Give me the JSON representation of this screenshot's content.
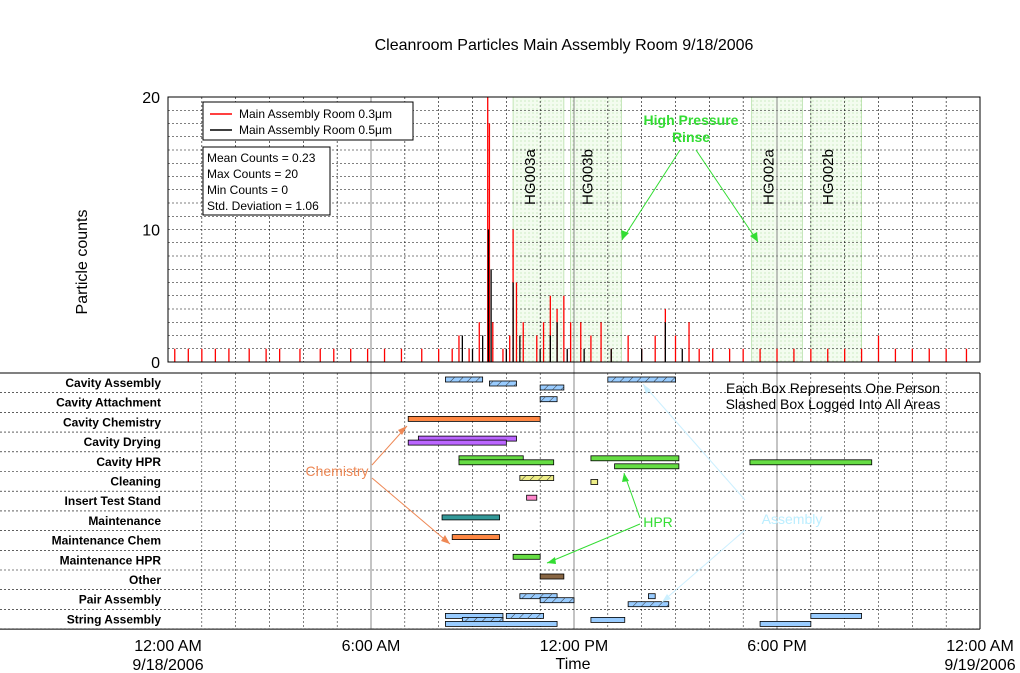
{
  "chart_data": {
    "title": "Cleanroom Particles Main Assembly Room 9/18/2006",
    "type": "line",
    "x_axis": {
      "label": "Time",
      "range_hours": [
        0,
        24
      ],
      "ticks": [
        {
          "hour": 0,
          "time": "12:00 AM",
          "date": "9/18/2006"
        },
        {
          "hour": 6,
          "time": "6:00 AM",
          "date": ""
        },
        {
          "hour": 12,
          "time": "12:00 PM",
          "date": ""
        },
        {
          "hour": 18,
          "time": "6:00 PM",
          "date": ""
        },
        {
          "hour": 24,
          "time": "12:00 AM",
          "date": "9/19/2006"
        }
      ]
    },
    "y_axis": {
      "label": "Particle counts",
      "ylim": [
        0,
        20
      ],
      "ticks": [
        "0",
        "10",
        "20"
      ]
    },
    "legend": {
      "placement": "top-left",
      "entries": [
        {
          "name": "Main Assembly Room 0.3μm",
          "color": "#ff0000"
        },
        {
          "name": "Main Assembly Room 0.5μm",
          "color": "#000000"
        }
      ]
    },
    "stats": [
      "Mean Counts = 0.23",
      "Max Counts = 20",
      "Min Counts = 0",
      "Std. Deviation = 1.06"
    ],
    "series": [
      {
        "name": "Main Assembly Room 0.3μm",
        "color": "#ff0000",
        "points": [
          [
            0.2,
            1
          ],
          [
            0.6,
            1
          ],
          [
            1.0,
            1
          ],
          [
            1.4,
            1
          ],
          [
            1.8,
            1
          ],
          [
            2.4,
            1
          ],
          [
            2.9,
            1
          ],
          [
            3.3,
            1
          ],
          [
            3.9,
            1
          ],
          [
            4.5,
            1
          ],
          [
            4.9,
            1
          ],
          [
            5.4,
            1
          ],
          [
            5.9,
            1
          ],
          [
            6.4,
            1
          ],
          [
            6.9,
            1
          ],
          [
            7.5,
            1
          ],
          [
            8.0,
            1
          ],
          [
            8.4,
            1
          ],
          [
            8.6,
            2
          ],
          [
            8.9,
            1
          ],
          [
            9.2,
            3
          ],
          [
            9.45,
            20
          ],
          [
            9.5,
            18
          ],
          [
            9.6,
            3
          ],
          [
            9.9,
            1
          ],
          [
            10.1,
            2
          ],
          [
            10.2,
            10
          ],
          [
            10.3,
            6
          ],
          [
            10.5,
            3
          ],
          [
            10.9,
            2
          ],
          [
            11.1,
            3
          ],
          [
            11.3,
            5
          ],
          [
            11.5,
            4
          ],
          [
            11.7,
            5
          ],
          [
            11.9,
            3
          ],
          [
            12.2,
            3
          ],
          [
            12.5,
            2
          ],
          [
            12.8,
            3
          ],
          [
            13.1,
            1
          ],
          [
            13.6,
            2
          ],
          [
            14.0,
            1
          ],
          [
            14.4,
            2
          ],
          [
            14.7,
            4
          ],
          [
            15.0,
            2
          ],
          [
            15.4,
            3
          ],
          [
            15.7,
            1
          ],
          [
            16.1,
            1
          ],
          [
            16.6,
            1
          ],
          [
            17.0,
            1
          ],
          [
            17.5,
            1
          ],
          [
            18.0,
            1
          ],
          [
            18.5,
            1
          ],
          [
            19.0,
            1
          ],
          [
            19.5,
            1
          ],
          [
            20.0,
            1
          ],
          [
            20.5,
            1
          ],
          [
            21.0,
            2
          ],
          [
            21.5,
            1
          ],
          [
            22.0,
            1
          ],
          [
            22.5,
            1
          ],
          [
            23.0,
            1
          ],
          [
            23.6,
            1
          ]
        ]
      },
      {
        "name": "Main Assembly Room 0.5μm",
        "color": "#000000",
        "points": [
          [
            8.7,
            2
          ],
          [
            9.0,
            1
          ],
          [
            9.3,
            2
          ],
          [
            9.47,
            10
          ],
          [
            9.55,
            7
          ],
          [
            10.0,
            1
          ],
          [
            10.2,
            6
          ],
          [
            10.4,
            2
          ],
          [
            11.0,
            1
          ],
          [
            11.3,
            2
          ],
          [
            11.5,
            3
          ],
          [
            11.8,
            1
          ],
          [
            12.3,
            1
          ],
          [
            13.1,
            1
          ],
          [
            14.0,
            1
          ],
          [
            14.7,
            3
          ],
          [
            15.2,
            1
          ]
        ]
      }
    ],
    "shaded_regions": [
      {
        "label": "HG003a",
        "start": 10.2,
        "end": 11.7
      },
      {
        "label": "HG003b",
        "start": 11.9,
        "end": 13.4
      },
      {
        "label": "HG002a",
        "start": 17.25,
        "end": 18.75
      },
      {
        "label": "HG002b",
        "start": 19.0,
        "end": 20.5
      }
    ],
    "gantt": {
      "categories": [
        "Cavity Assembly",
        "Cavity Attachment",
        "Cavity Chemistry",
        "Cavity Drying",
        "Cavity HPR",
        "Cleaning",
        "Insert Test Stand",
        "Maintenance",
        "Maintenance Chem",
        "Maintenance HPR",
        "Other",
        "Pair Assembly",
        "String Assembly"
      ],
      "boxes": [
        {
          "row": 0,
          "start": 8.2,
          "end": 9.3,
          "color": "#99ccff",
          "hatch": true
        },
        {
          "row": 0,
          "start": 9.5,
          "end": 10.3,
          "color": "#99ccff",
          "hatch": true
        },
        {
          "row": 0,
          "start": 11.0,
          "end": 11.7,
          "color": "#99ccff",
          "hatch": true
        },
        {
          "row": 0,
          "start": 13.0,
          "end": 15.0,
          "color": "#99ccff",
          "hatch": true
        },
        {
          "row": 1,
          "start": 11.0,
          "end": 11.5,
          "color": "#99ccff",
          "hatch": true
        },
        {
          "row": 2,
          "start": 7.1,
          "end": 11.0,
          "color": "#ff8844",
          "hatch": false
        },
        {
          "row": 3,
          "start": 7.4,
          "end": 10.3,
          "color": "#bb66ff",
          "hatch": false
        },
        {
          "row": 3,
          "start": 7.1,
          "end": 10.0,
          "color": "#bb66ff",
          "hatch": false
        },
        {
          "row": 4,
          "start": 8.6,
          "end": 10.5,
          "color": "#66dd44",
          "hatch": false
        },
        {
          "row": 4,
          "start": 8.6,
          "end": 11.4,
          "color": "#66dd44",
          "hatch": false
        },
        {
          "row": 4,
          "start": 13.2,
          "end": 15.1,
          "color": "#66dd44",
          "hatch": false
        },
        {
          "row": 4,
          "start": 12.5,
          "end": 15.1,
          "color": "#66dd44",
          "hatch": false
        },
        {
          "row": 4,
          "start": 17.2,
          "end": 20.8,
          "color": "#66dd44",
          "hatch": false
        },
        {
          "row": 5,
          "start": 10.4,
          "end": 11.4,
          "color": "#eeee88",
          "hatch": true
        },
        {
          "row": 5,
          "start": 12.5,
          "end": 12.7,
          "color": "#eeee88",
          "hatch": false
        },
        {
          "row": 6,
          "start": 10.6,
          "end": 10.9,
          "color": "#ff88cc",
          "hatch": false
        },
        {
          "row": 7,
          "start": 8.1,
          "end": 9.8,
          "color": "#339999",
          "hatch": false
        },
        {
          "row": 8,
          "start": 8.4,
          "end": 9.8,
          "color": "#ff8844",
          "hatch": false
        },
        {
          "row": 9,
          "start": 10.2,
          "end": 11.0,
          "color": "#66dd44",
          "hatch": false
        },
        {
          "row": 10,
          "start": 11.0,
          "end": 11.7,
          "color": "#886644",
          "hatch": false
        },
        {
          "row": 11,
          "start": 10.4,
          "end": 11.5,
          "color": "#99ccff",
          "hatch": true
        },
        {
          "row": 11,
          "start": 11.0,
          "end": 12.0,
          "color": "#99ccff",
          "hatch": true
        },
        {
          "row": 11,
          "start": 13.6,
          "end": 14.8,
          "color": "#99ccff",
          "hatch": true
        },
        {
          "row": 11,
          "start": 14.2,
          "end": 14.4,
          "color": "#99ccff",
          "hatch": false
        },
        {
          "row": 12,
          "start": 8.2,
          "end": 9.9,
          "color": "#99ccff",
          "hatch": false
        },
        {
          "row": 12,
          "start": 8.7,
          "end": 9.9,
          "color": "#99ccff",
          "hatch": true
        },
        {
          "row": 12,
          "start": 8.2,
          "end": 11.5,
          "color": "#99ccff",
          "hatch": false
        },
        {
          "row": 12,
          "start": 10.0,
          "end": 11.1,
          "color": "#99ccff",
          "hatch": true
        },
        {
          "row": 12,
          "start": 12.5,
          "end": 13.5,
          "color": "#99ccff",
          "hatch": false
        },
        {
          "row": 12,
          "start": 17.5,
          "end": 19.0,
          "color": "#99ccff",
          "hatch": false
        },
        {
          "row": 12,
          "start": 19.0,
          "end": 20.5,
          "color": "#99ccff",
          "hatch": false
        }
      ]
    },
    "annotations": {
      "hpr_top": {
        "text": [
          "High Pressure",
          "Rinse"
        ],
        "color": "#33dd33"
      },
      "chemistry": {
        "text": "Chemistry",
        "color": "#ee8855"
      },
      "hpr_bottom": {
        "text": "HPR",
        "color": "#33dd33"
      },
      "assembly": {
        "text": "Assembly",
        "color": "#bbeeff"
      },
      "note": [
        "Each Box Represents One Person",
        "Slashed Box Logged Into All Areas"
      ]
    }
  }
}
